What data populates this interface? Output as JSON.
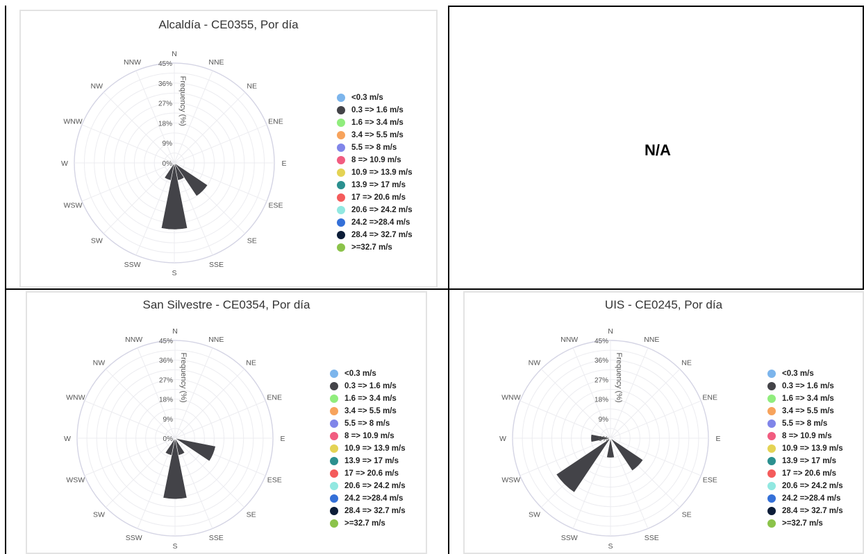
{
  "speed_legend": [
    {
      "label": "<0.3 m/s",
      "color": "#7cb5ec"
    },
    {
      "label": "0.3 => 1.6 m/s",
      "color": "#434348"
    },
    {
      "label": "1.6 => 3.4 m/s",
      "color": "#90ed7d"
    },
    {
      "label": "3.4 => 5.5 m/s",
      "color": "#f7a35c"
    },
    {
      "label": "5.5 => 8 m/s",
      "color": "#8085e9"
    },
    {
      "label": "8 => 10.9 m/s",
      "color": "#f15c80"
    },
    {
      "label": "10.9 => 13.9 m/s",
      "color": "#e4d354"
    },
    {
      "label": "13.9 => 17 m/s",
      "color": "#2b908f"
    },
    {
      "label": "17 => 20.6 m/s",
      "color": "#f45b5b"
    },
    {
      "label": "20.6 => 24.2 m/s",
      "color": "#91e8e1"
    },
    {
      "label": "24.2 =>28.4 m/s",
      "color": "#3470d8"
    },
    {
      "label": "28.4 => 32.7 m/s",
      "color": "#0c1d38"
    },
    {
      "label": ">=32.7 m/s",
      "color": "#8bc34a"
    }
  ],
  "directions": [
    "N",
    "NNE",
    "NE",
    "ENE",
    "E",
    "ESE",
    "SE",
    "SSE",
    "S",
    "SSW",
    "SW",
    "WSW",
    "W",
    "WNW",
    "NW",
    "NNW"
  ],
  "radial_ticks": [
    "0%",
    "9%",
    "18%",
    "27%",
    "36%",
    "45%"
  ],
  "axis_title": "Frequency (%)",
  "na_text": "N/A",
  "chart_data": [
    {
      "type": "windrose",
      "title": "Alcaldía - CE0355, Por día",
      "ylabel": "Frequency (%)",
      "ylim": [
        0,
        45
      ],
      "series_name": "0.3 => 1.6 m/s",
      "values": {
        "N": 0,
        "NNE": 0,
        "NE": 0,
        "ENE": 0,
        "E": 0,
        "ESE": 0,
        "SE": 18,
        "SSE": 8,
        "S": 30,
        "SSW": 8,
        "SW": 0,
        "WSW": 0,
        "W": 0,
        "WNW": 0,
        "NW": 0,
        "NNW": 0
      }
    },
    {
      "type": "windrose",
      "title": "San Silvestre - CE0354, Por día",
      "ylabel": "Frequency (%)",
      "ylim": [
        0,
        45
      ],
      "series_name": "0.3 => 1.6 m/s",
      "values": {
        "N": 0,
        "NNE": 0,
        "NE": 0,
        "ENE": 0,
        "E": 0,
        "ESE": 19,
        "SE": 0,
        "SSE": 8,
        "S": 28,
        "SSW": 8,
        "SW": 0,
        "WSW": 0,
        "W": 0,
        "WNW": 0,
        "NW": 0,
        "NNW": 0
      }
    },
    {
      "type": "windrose",
      "title": "UIS - CE0245, Por día",
      "ylabel": "Frequency (%)",
      "ylim": [
        0,
        45
      ],
      "series_name": "0.3 => 1.6 m/s",
      "values": {
        "N": 0,
        "NNE": 0,
        "NE": 0,
        "ENE": 0,
        "E": 0,
        "ESE": 0,
        "SE": 18,
        "SSE": 0,
        "S": 9,
        "SSW": 0,
        "SW": 30,
        "WSW": 0,
        "W": 9,
        "WNW": 0,
        "NW": 0,
        "NNW": 0
      }
    }
  ]
}
